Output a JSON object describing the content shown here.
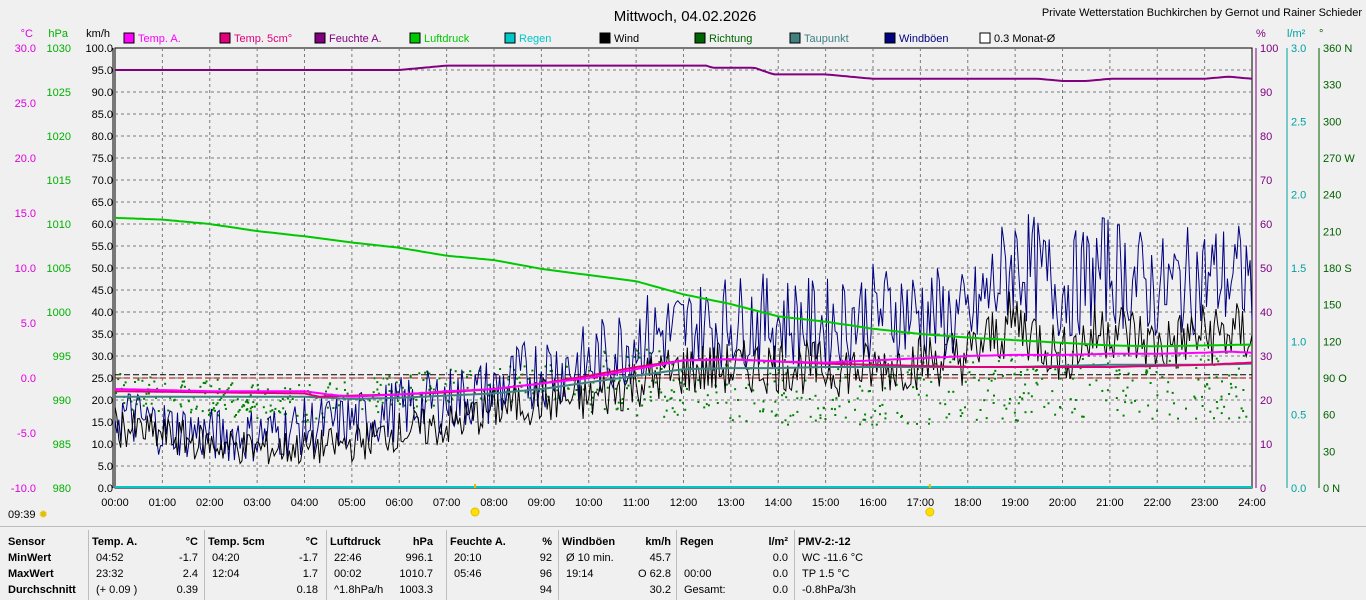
{
  "chart_data": {
    "type": "line",
    "title": "Mittwoch, 04.02.2026",
    "credit": "Private Wetterstation Buchkirchen by Gernot und Rainer Schieder",
    "x_ticks": [
      "00:00",
      "01:00",
      "02:00",
      "03:00",
      "04:00",
      "05:00",
      "06:00",
      "07:00",
      "08:00",
      "09:00",
      "10:00",
      "11:00",
      "12:00",
      "13:00",
      "14:00",
      "15:00",
      "16:00",
      "17:00",
      "18:00",
      "19:00",
      "20:00",
      "21:00",
      "22:00",
      "23:00",
      "24:00"
    ],
    "left_axes": [
      {
        "unit": "°C",
        "color": "#e000e0",
        "range": [
          -10,
          30
        ],
        "ticks": [
          "30.0",
          "25.0",
          "20.0",
          "15.0",
          "10.0",
          "5.0",
          "0.0",
          "-5.0",
          "-10.0"
        ]
      },
      {
        "unit": "hPa",
        "color": "#00b000",
        "range": [
          980,
          1030
        ],
        "ticks": [
          "1030",
          "1025",
          "1020",
          "1015",
          "1010",
          "1005",
          "1000",
          "995",
          "990",
          "985",
          "980"
        ]
      },
      {
        "unit": "km/h",
        "color": "#000000",
        "range": [
          0,
          100
        ],
        "ticks": [
          "100.0",
          "95.0",
          "90.0",
          "85.0",
          "80.0",
          "75.0",
          "70.0",
          "65.0",
          "60.0",
          "55.0",
          "50.0",
          "45.0",
          "40.0",
          "35.0",
          "30.0",
          "25.0",
          "20.0",
          "15.0",
          "10.0",
          "5.0",
          "0.0"
        ]
      }
    ],
    "right_axes": [
      {
        "unit": "%",
        "color": "#800080",
        "range": [
          0,
          100
        ],
        "ticks": [
          "100",
          "90",
          "80",
          "70",
          "60",
          "50",
          "40",
          "30",
          "20",
          "10",
          "0"
        ]
      },
      {
        "unit": "l/m²",
        "color": "#00a0a0",
        "range": [
          0,
          3
        ],
        "ticks": [
          "3.0",
          "2.5",
          "2.0",
          "1.5",
          "1.0",
          "0.5",
          "0.0"
        ]
      },
      {
        "unit": "°",
        "color": "#006000",
        "range": [
          0,
          360
        ],
        "ticks": [
          "360 N",
          "330",
          "300",
          "270 W",
          "240",
          "210",
          "180 S",
          "150",
          "120",
          "90 O",
          "60",
          "30",
          "0 N"
        ]
      }
    ],
    "legend": [
      {
        "name": "Temp. A.",
        "color": "#ff00ff"
      },
      {
        "name": "Temp. 5cm°",
        "color": "#e0007a"
      },
      {
        "name": "Feuchte A.",
        "color": "#800080"
      },
      {
        "name": "Luftdruck",
        "color": "#00c800"
      },
      {
        "name": "Regen",
        "color": "#00c8c8"
      },
      {
        "name": "Wind",
        "color": "#000000"
      },
      {
        "name": "Richtung",
        "color": "#006400"
      },
      {
        "name": "Taupunkt",
        "color": "#408080"
      },
      {
        "name": "Windböen",
        "color": "#000080"
      },
      {
        "name": "0.3 Monat-Ø",
        "color": "#ffffff"
      }
    ],
    "series": {
      "temp_a_c": {
        "x": [
          0,
          1,
          2,
          3,
          4,
          4.5,
          5,
          6,
          7,
          8,
          9,
          10,
          11,
          12,
          13,
          14,
          15,
          16,
          17,
          18,
          19,
          20,
          21,
          22,
          23,
          23.5,
          24
        ],
        "y": [
          -1.0,
          -1.1,
          -1.2,
          -1.2,
          -1.2,
          -1.5,
          -1.7,
          -1.5,
          -1.2,
          -1.0,
          -0.5,
          0.0,
          0.8,
          1.6,
          1.7,
          1.5,
          1.4,
          1.6,
          1.8,
          2.0,
          2.1,
          2.1,
          2.2,
          2.2,
          2.3,
          2.4,
          2.3
        ]
      },
      "temp_5cm_c": {
        "x": [
          0,
          2,
          4,
          4.3,
          5,
          6,
          7,
          8,
          9,
          10,
          11,
          12,
          13,
          14,
          15,
          16,
          17,
          18,
          19,
          20,
          21,
          22,
          23,
          24
        ],
        "y": [
          -1.2,
          -1.3,
          -1.4,
          -1.7,
          -1.6,
          -1.5,
          -1.3,
          -1.0,
          -0.5,
          0.2,
          1.0,
          1.6,
          1.7,
          1.5,
          1.3,
          1.2,
          1.1,
          1.0,
          1.0,
          1.0,
          1.0,
          1.1,
          1.2,
          1.4
        ]
      },
      "humidity_pct": {
        "x": [
          0,
          5,
          5.9,
          6,
          6.5,
          7,
          12.5,
          12.6,
          13.5,
          13.9,
          15,
          15.5,
          16,
          17,
          18,
          19,
          19.5,
          20,
          20.5,
          21,
          22,
          23,
          23.5,
          24
        ],
        "y": [
          95,
          95,
          95,
          95,
          95.5,
          96,
          96,
          95.5,
          95.5,
          94,
          94,
          93.5,
          93,
          93,
          93,
          93,
          93,
          92.5,
          92.5,
          93,
          93,
          93,
          93.5,
          93
        ]
      },
      "pressure_hpa": {
        "x": [
          0,
          1,
          2,
          3,
          4,
          5,
          6,
          7,
          8,
          9,
          10,
          11,
          12,
          13,
          14,
          15,
          16,
          17,
          18,
          19,
          20,
          21,
          22,
          23,
          24
        ],
        "y": [
          1010.7,
          1010.5,
          1010.0,
          1009.2,
          1008.6,
          1007.9,
          1007.3,
          1006.4,
          1005.9,
          1004.9,
          1004.2,
          1003.5,
          1002.0,
          1000.9,
          999.5,
          998.9,
          998.1,
          997.5,
          997.1,
          996.8,
          996.5,
          996.2,
          996.1,
          996.2,
          996.3
        ]
      },
      "wind_kmh": {
        "x": [
          0,
          1,
          2,
          3,
          4,
          5,
          6,
          7,
          8,
          9,
          10,
          11,
          12,
          13,
          14,
          15,
          16,
          17,
          18,
          19,
          20,
          21,
          22,
          23,
          24
        ],
        "y": [
          14,
          12,
          10,
          9,
          9,
          10,
          13,
          14,
          18,
          20,
          20,
          24,
          27,
          27,
          28,
          27,
          27,
          29,
          30,
          38,
          30,
          37,
          32,
          35,
          35
        ]
      },
      "gust_kmh": {
        "x": [
          0,
          1,
          2,
          3,
          4,
          5,
          6,
          7,
          8,
          9,
          10,
          11,
          12,
          13,
          14,
          15,
          16,
          17,
          18,
          19,
          20,
          21,
          22,
          23,
          24
        ],
        "y": [
          17,
          14,
          12,
          12,
          14,
          15,
          18,
          20,
          22,
          27,
          28,
          34,
          36,
          38,
          38,
          37,
          40,
          40,
          38,
          52,
          45,
          50,
          45,
          48,
          48
        ]
      },
      "dewpoint_c": {
        "x": [
          0,
          2,
          4,
          5,
          6,
          7,
          8,
          9,
          10,
          11,
          12,
          13,
          14,
          15,
          16,
          17,
          18,
          19,
          20,
          21,
          22,
          23,
          24
        ],
        "y": [
          -1.7,
          -1.7,
          -1.7,
          -1.9,
          -1.8,
          -1.6,
          -1.4,
          -1.0,
          -0.4,
          0.2,
          0.8,
          0.9,
          0.9,
          1.0,
          1.0,
          1.0,
          1.0,
          1.0,
          1.1,
          1.2,
          1.2,
          1.2,
          1.3
        ]
      },
      "monthly_avg_temp_c": [
        0.0,
        0.3
      ],
      "rain_lm2": 0.0,
      "direction_deg": {
        "x": [
          0,
          2,
          4,
          6,
          8,
          10,
          12,
          14,
          16,
          18,
          20,
          22,
          24
        ],
        "y": [
          80,
          75,
          70,
          80,
          85,
          90,
          85,
          80,
          80,
          80,
          85,
          85,
          85
        ]
      }
    },
    "markers": [
      {
        "label": "sunrise",
        "time": 7.6
      },
      {
        "label": "sunset",
        "time": 17.2
      }
    ]
  },
  "clock": "09:39",
  "stats": {
    "row_labels": [
      "Sensor",
      "MinWert",
      "MaxWert",
      "Durchschnitt"
    ],
    "blocks": [
      {
        "head": "Temp. A.",
        "unit": "°C",
        "rows": [
          [
            "04:52",
            "-1.7"
          ],
          [
            "23:32",
            "2.4"
          ],
          [
            "(+ 0.09 )",
            "0.39"
          ]
        ]
      },
      {
        "head": "Temp. 5cm",
        "unit": "°C",
        "rows": [
          [
            "04:20",
            "-1.7"
          ],
          [
            "12:04",
            "1.7"
          ],
          [
            "",
            "0.18"
          ]
        ]
      },
      {
        "head": "Luftdruck",
        "unit": "hPa",
        "rows": [
          [
            "22:46",
            "996.1"
          ],
          [
            "00:02",
            "1010.7"
          ],
          [
            "^1.8hPa/h",
            "1003.3"
          ]
        ]
      },
      {
        "head": "Feuchte A.",
        "unit": "%",
        "rows": [
          [
            "20:10",
            "92"
          ],
          [
            "05:46",
            "96"
          ],
          [
            "",
            "94"
          ]
        ]
      },
      {
        "head": "Windböen",
        "unit": "km/h",
        "rows": [
          [
            "Ø 10 min.",
            "45.7"
          ],
          [
            "19:14",
            "O 62.8"
          ],
          [
            "",
            "30.2"
          ]
        ]
      },
      {
        "head": "Regen",
        "unit": "l/m²",
        "rows": [
          [
            "",
            "0.0"
          ],
          [
            "00:00",
            "0.0"
          ],
          [
            "Gesamt:",
            "0.0"
          ]
        ]
      },
      {
        "head": "PMV-2:-12",
        "unit": "",
        "rows": [
          [
            "WC -11.6 °C",
            ""
          ],
          [
            "TP 1.5 °C",
            ""
          ],
          [
            "-0.8hPa/3h",
            ""
          ]
        ]
      }
    ]
  }
}
